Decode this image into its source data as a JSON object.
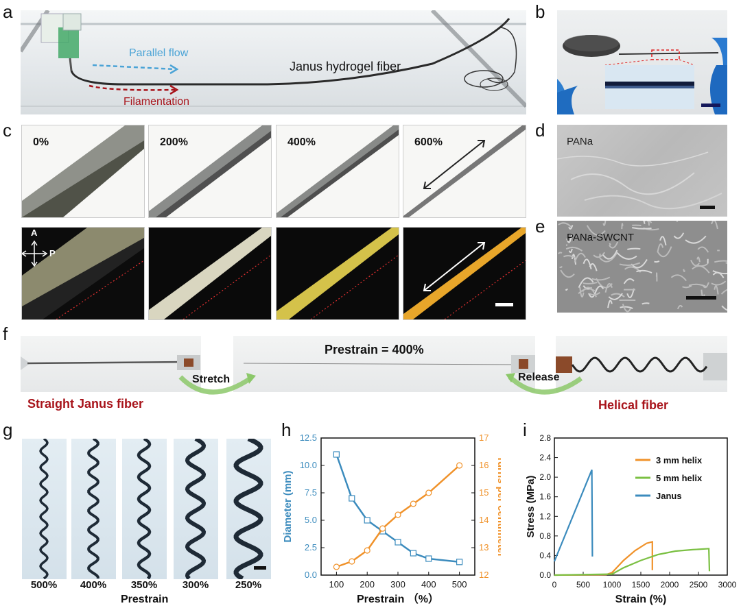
{
  "panel_labels": {
    "a": "a",
    "b": "b",
    "c": "c",
    "d": "d",
    "e": "e",
    "f": "f",
    "g": "g",
    "h": "h",
    "i": "i"
  },
  "panel_a": {
    "parallel_flow": "Parallel flow",
    "filamentation": "Filamentation",
    "fiber_label": "Janus hydrogel fiber"
  },
  "panel_c": {
    "strains": [
      "0%",
      "200%",
      "400%",
      "600%"
    ],
    "polarizer": {
      "a": "A",
      "p": "P"
    }
  },
  "panel_d": {
    "label": "PANa"
  },
  "panel_e": {
    "label": "PANa-SWCNT"
  },
  "panel_f": {
    "prestrain": "Prestrain = 400%",
    "stretch": "Stretch",
    "release": "Release",
    "straight": "Straight Janus fiber",
    "helical": "Helical fiber"
  },
  "panel_g": {
    "labels": [
      "500%",
      "400%",
      "350%",
      "300%",
      "250%"
    ],
    "xlabel": "Prestrain"
  },
  "colors": {
    "blue": "#3b8bbd",
    "orange": "#f0922a",
    "green": "#7bc043",
    "dark_red": "#a8141b",
    "annotation_blue": "#4aa3d6"
  },
  "chart_data": [
    {
      "type": "line",
      "panel": "h",
      "xlabel": "Prestrain （%）",
      "ylabel_left": "Diameter (mm)",
      "ylabel_right": "Turns per centimeter",
      "xlim": [
        50,
        550
      ],
      "ylim_left": [
        0,
        12.5
      ],
      "ylim_right": [
        12,
        17
      ],
      "x_ticks": [
        100,
        200,
        300,
        400,
        500
      ],
      "y_left_ticks": [
        "0.0",
        "2.5",
        "5.0",
        "7.5",
        "10.0",
        "12.5"
      ],
      "y_right_ticks": [
        "12",
        "13",
        "14",
        "15",
        "16",
        "17"
      ],
      "series": [
        {
          "axis": "left",
          "x": [
            100,
            150,
            200,
            250,
            300,
            350,
            400,
            500
          ],
          "values": [
            11.0,
            7.0,
            5.0,
            4.0,
            3.0,
            2.0,
            1.5,
            1.2
          ]
        },
        {
          "axis": "right",
          "x": [
            100,
            150,
            200,
            250,
            300,
            350,
            400,
            500
          ],
          "values": [
            12.3,
            12.5,
            12.9,
            13.7,
            14.2,
            14.6,
            15.0,
            16.0
          ]
        }
      ]
    },
    {
      "type": "line",
      "panel": "i",
      "xlabel": "Strain (%)",
      "ylabel": "Stress (MPa)",
      "xlim": [
        0,
        3000
      ],
      "ylim": [
        0,
        2.8
      ],
      "x_ticks": [
        "0",
        "500",
        "1000",
        "1500",
        "2000",
        "2500",
        "3000"
      ],
      "y_ticks": [
        "0.0",
        "0.4",
        "0.8",
        "1.2",
        "1.6",
        "2.0",
        "2.4",
        "2.8"
      ],
      "legend_position": "top-right",
      "series": [
        {
          "name": "3 mm helix",
          "x": [
            0,
            900,
            1000,
            1200,
            1400,
            1600,
            1700,
            1700
          ],
          "values": [
            0,
            0.01,
            0.05,
            0.3,
            0.5,
            0.65,
            0.68,
            0.1
          ]
        },
        {
          "name": "5 mm helix",
          "x": [
            0,
            1000,
            1200,
            1500,
            1800,
            2100,
            2400,
            2680,
            2690
          ],
          "values": [
            0,
            0.02,
            0.15,
            0.3,
            0.42,
            0.49,
            0.52,
            0.54,
            0.08
          ]
        },
        {
          "name": "Janus",
          "x": [
            0,
            650,
            660
          ],
          "values": [
            0.28,
            2.15,
            0.38
          ]
        }
      ]
    }
  ]
}
